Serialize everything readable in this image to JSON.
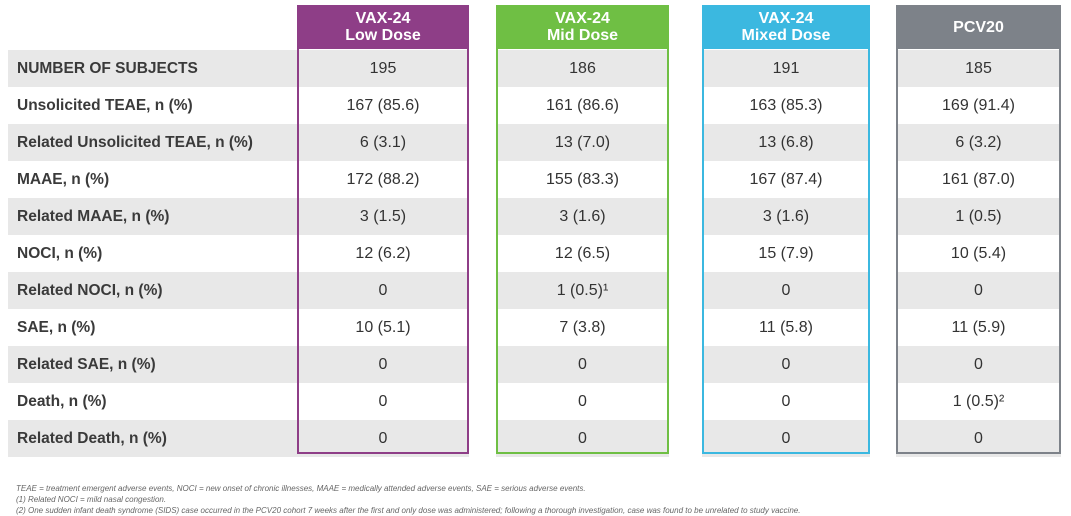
{
  "columns": [
    {
      "line1": "VAX-24",
      "line2": "Low Dose",
      "color": "#8e3e87"
    },
    {
      "line1": "VAX-24",
      "line2": "Mid Dose",
      "color": "#6fbf44"
    },
    {
      "line1": "VAX-24",
      "line2": "Mixed Dose",
      "color": "#3bb8e0"
    },
    {
      "line1": "PCV20",
      "line2": "",
      "color": "#7d8289"
    }
  ],
  "rows": [
    {
      "label": "NUMBER OF SUBJECTS",
      "values": [
        "195",
        "186",
        "191",
        "185"
      ]
    },
    {
      "label": "Unsolicited TEAE, n (%)",
      "values": [
        "167 (85.6)",
        "161 (86.6)",
        "163 (85.3)",
        "169 (91.4)"
      ]
    },
    {
      "label": "Related Unsolicited TEAE, n (%)",
      "values": [
        "6 (3.1)",
        "13 (7.0)",
        "13 (6.8)",
        "6 (3.2)"
      ]
    },
    {
      "label": "MAAE, n (%)",
      "values": [
        "172 (88.2)",
        "155 (83.3)",
        "167 (87.4)",
        "161 (87.0)"
      ]
    },
    {
      "label": "Related MAAE, n (%)",
      "values": [
        "3 (1.5)",
        "3 (1.6)",
        "3 (1.6)",
        "1 (0.5)"
      ]
    },
    {
      "label": "NOCI, n (%)",
      "values": [
        "12 (6.2)",
        "12 (6.5)",
        "15 (7.9)",
        "10 (5.4)"
      ]
    },
    {
      "label": "Related NOCI, n (%)",
      "values": [
        "0",
        "1 (0.5)¹",
        "0",
        "0"
      ]
    },
    {
      "label": "SAE, n (%)",
      "values": [
        "10 (5.1)",
        "7 (3.8)",
        "11 (5.8)",
        "11 (5.9)"
      ]
    },
    {
      "label": "Related SAE, n (%)",
      "values": [
        "0",
        "0",
        "0",
        "0"
      ]
    },
    {
      "label": "Death, n (%)",
      "values": [
        "0",
        "0",
        "0",
        "1 (0.5)²"
      ]
    },
    {
      "label": "Related Death, n (%)",
      "values": [
        "0",
        "0",
        "0",
        "0"
      ]
    }
  ],
  "footnotes": [
    "TEAE = treatment emergent adverse events, NOCI = new onset of chronic illnesses, MAAE = medically attended adverse events, SAE = serious adverse events.",
    "(1) Related NOCI = mild nasal congestion.",
    "(2) One sudden infant death syndrome (SIDS) case occurred in the PCV20 cohort 7 weeks after the first and only dose was administered; following a thorough investigation, case was found to be unrelated to study vaccine."
  ]
}
